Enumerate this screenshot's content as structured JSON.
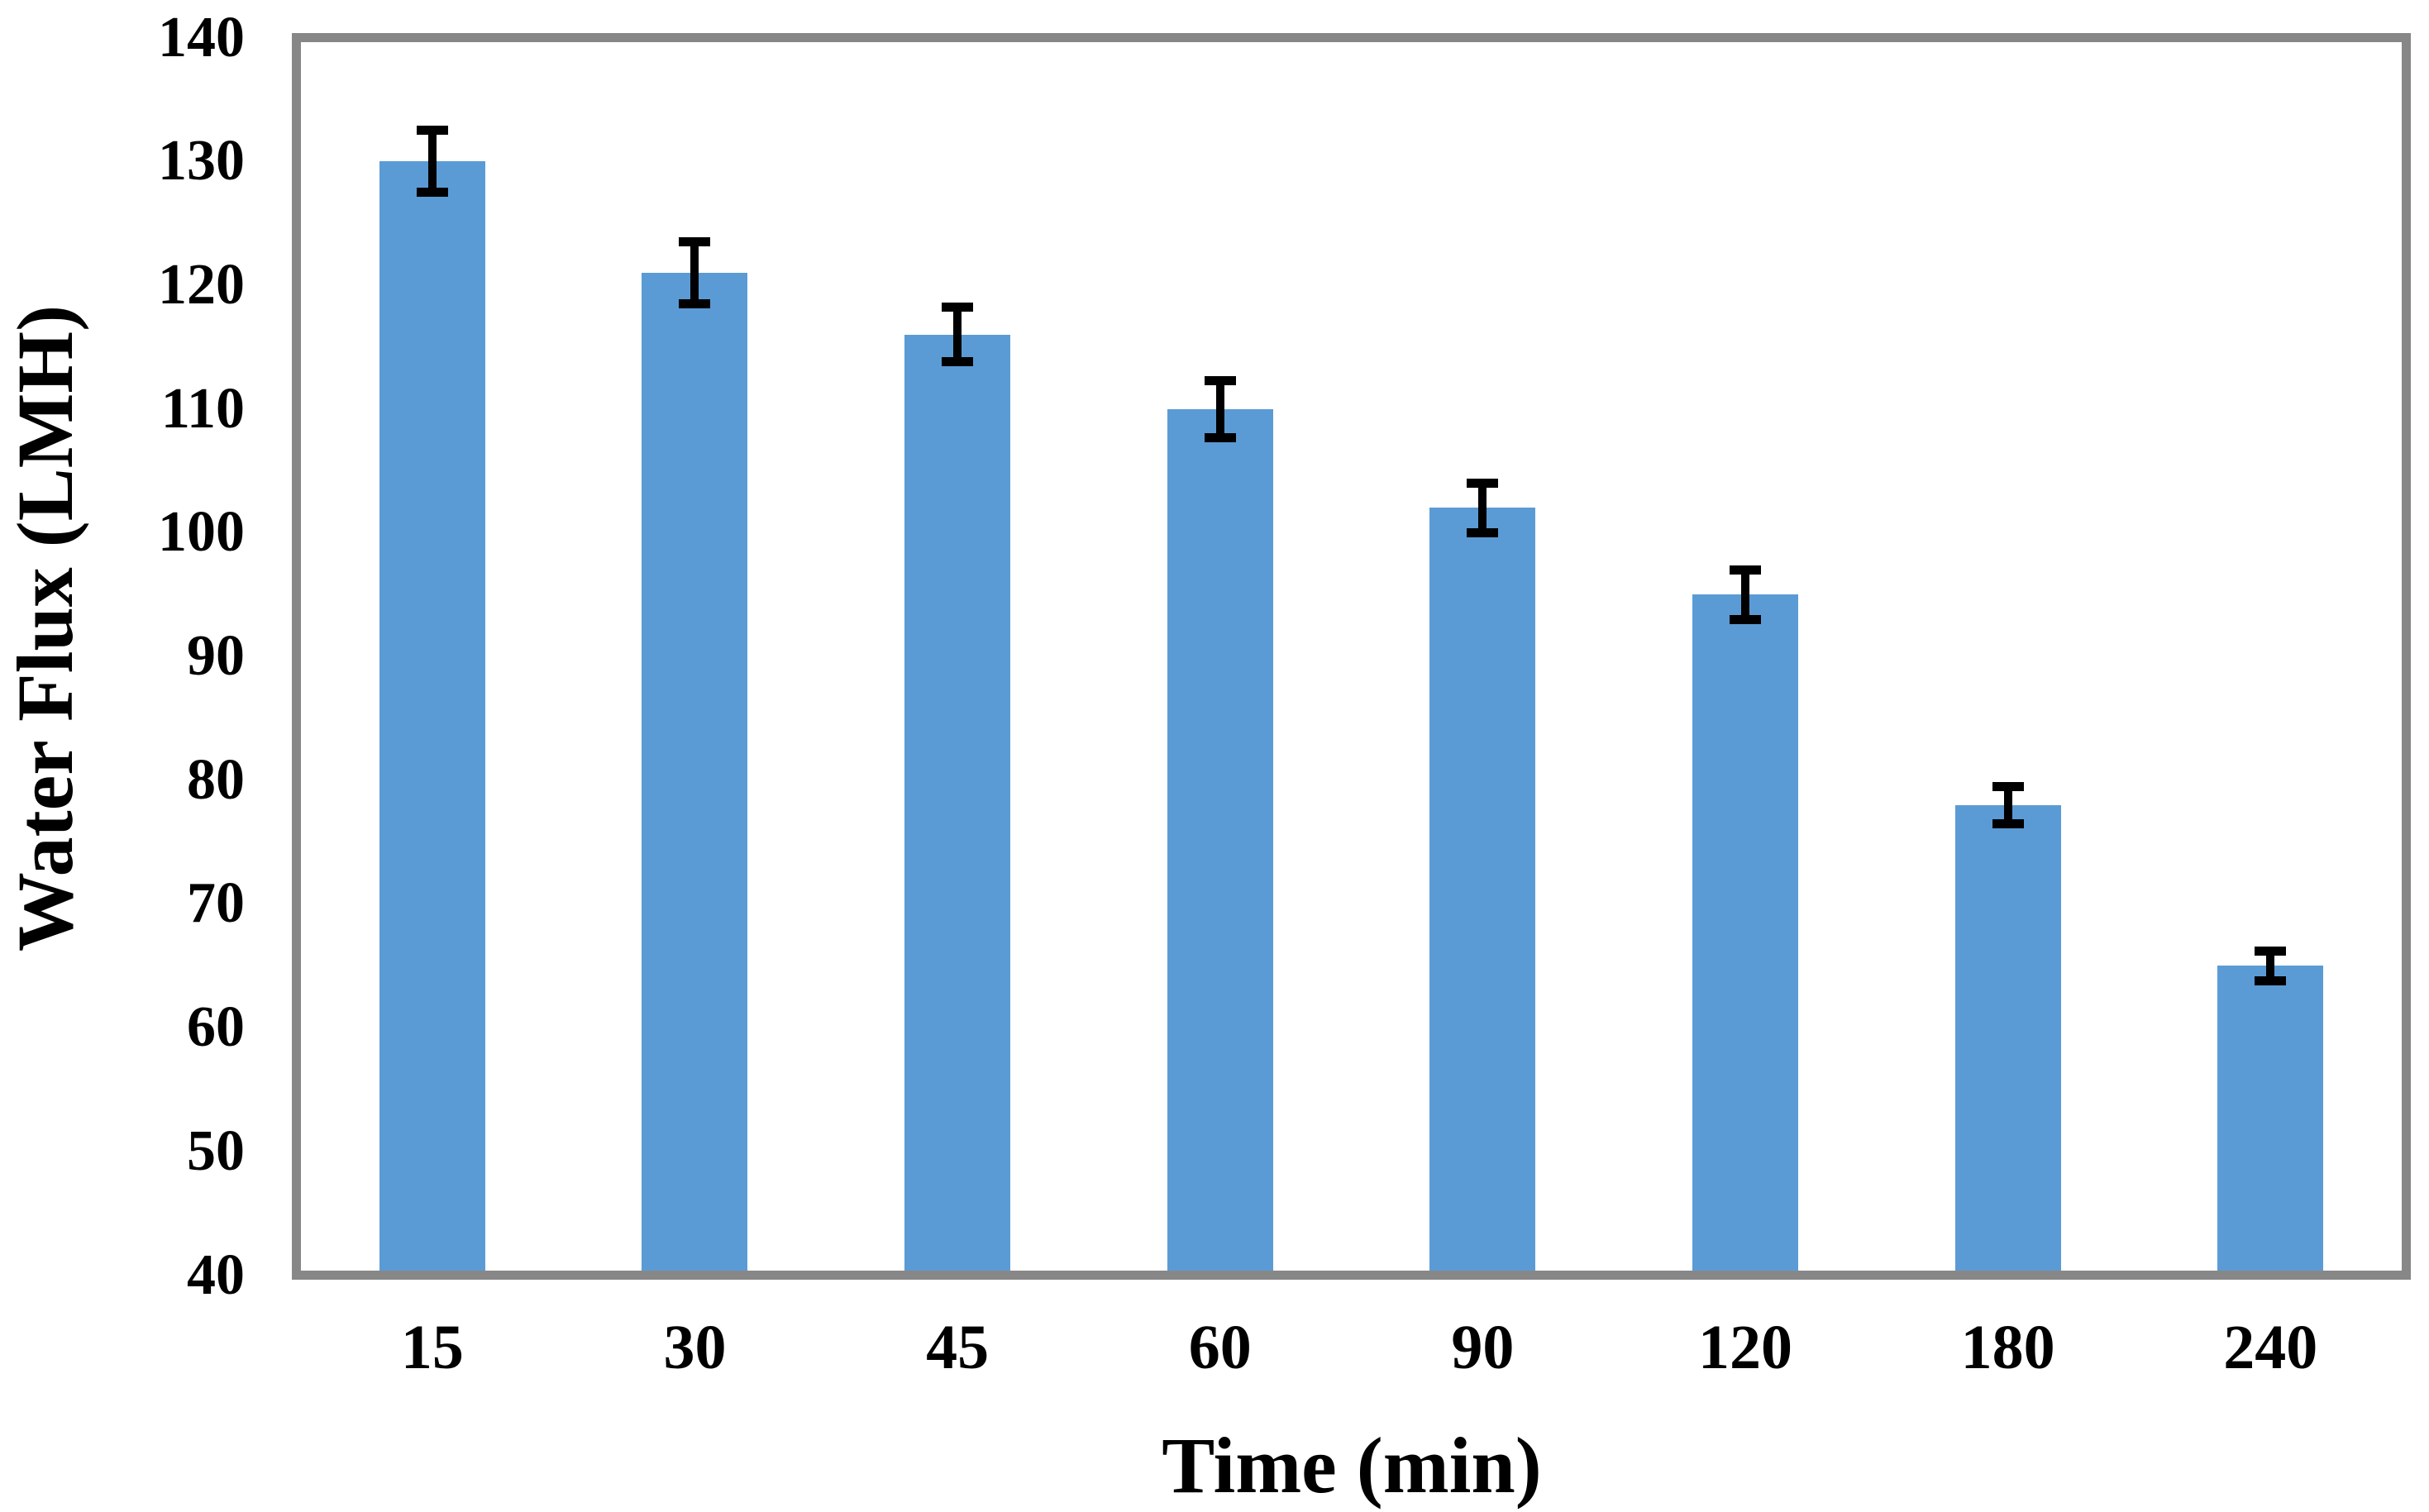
{
  "chart_data": {
    "type": "bar",
    "title": "",
    "xlabel": "Time (min)",
    "ylabel": "Water Flux (LMH)",
    "categories": [
      "15",
      "30",
      "45",
      "60",
      "90",
      "120",
      "180",
      "240"
    ],
    "series": [
      {
        "name": "Water Flux",
        "values": [
          130,
          121,
          116,
          110,
          102,
          95,
          78,
          65
        ],
        "errors": [
          2.5,
          2.5,
          2.2,
          2.3,
          2.0,
          2.0,
          1.5,
          1.2
        ]
      }
    ],
    "ylim": [
      40,
      140
    ],
    "ytick_step": 10,
    "y_tick_labels": [
      "140",
      "130",
      "120",
      "110",
      "100",
      "90",
      "80",
      "70",
      "60",
      "50",
      "40"
    ],
    "grid": "off",
    "legend": "none",
    "frame": "full-box",
    "error_bars": "plus-minus, black caps",
    "colors": {
      "bar_fill": "#5b9bd5",
      "axis_frame": "#878787",
      "error_bar": "#000000",
      "text": "#000000",
      "background": "#ffffff"
    }
  }
}
